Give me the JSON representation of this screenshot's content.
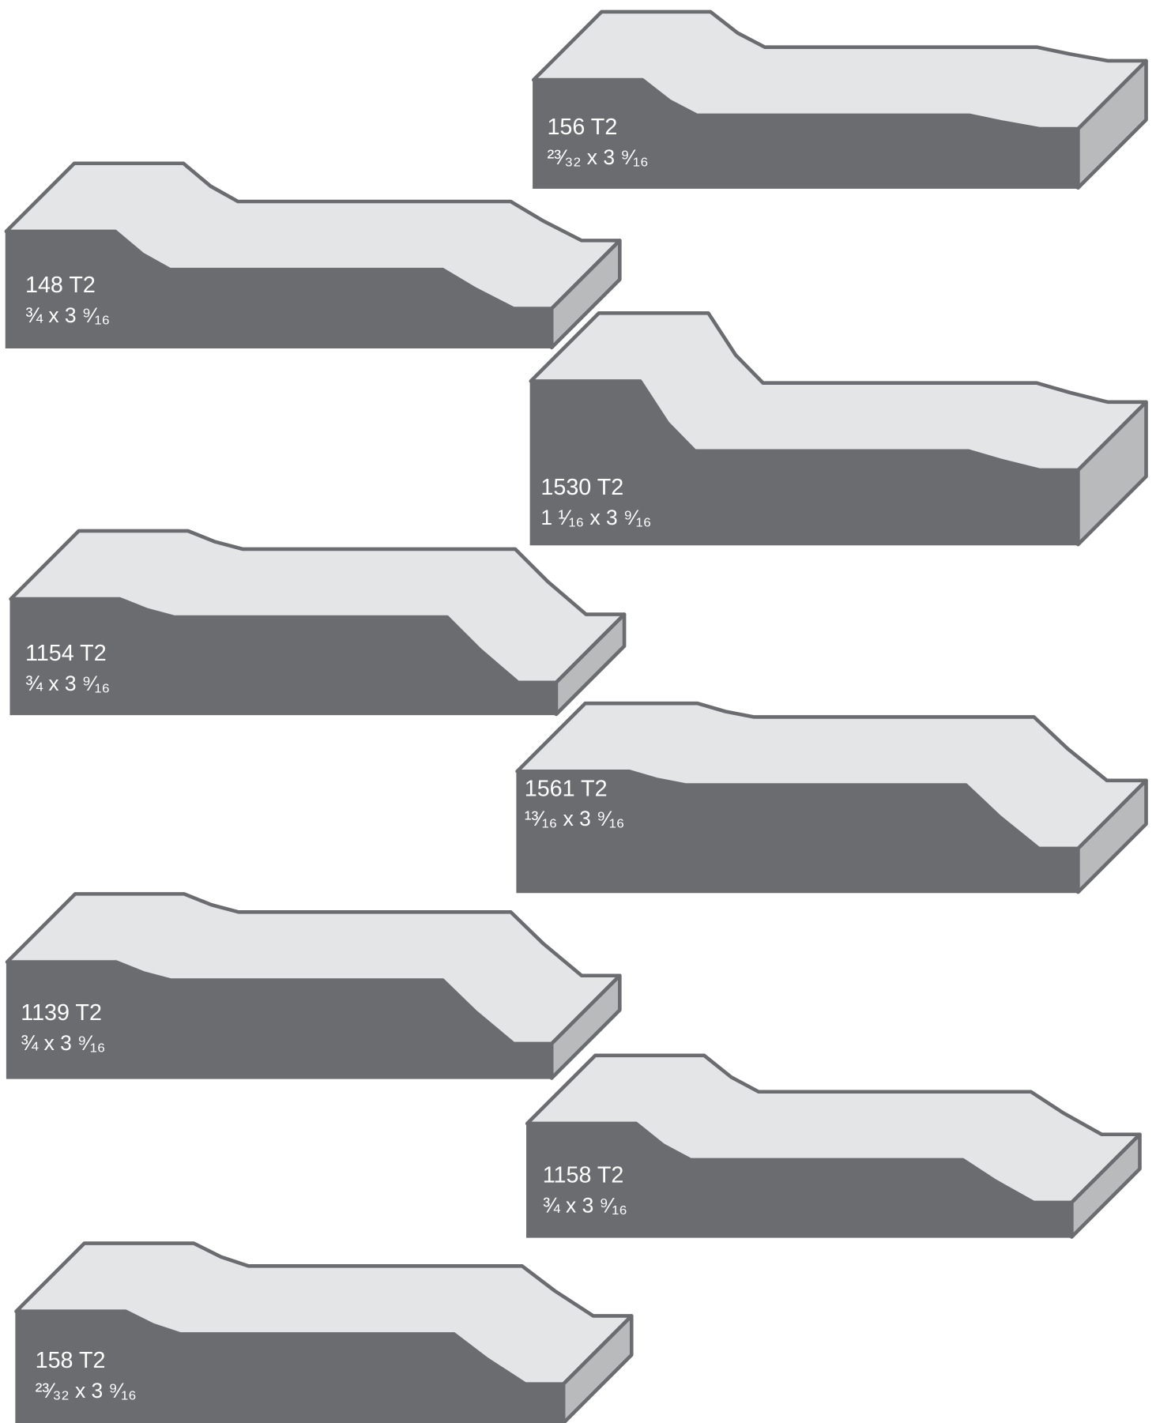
{
  "profiles": [
    {
      "name": "156 T2",
      "size": "²³⁄₃₂ x 3 ⁹⁄₁₆"
    },
    {
      "name": "148 T2",
      "size": "¾ x 3 ⁹⁄₁₆"
    },
    {
      "name": "1530 T2",
      "size": "1 ¹⁄₁₆ x 3 ⁹⁄₁₆"
    },
    {
      "name": "1154 T2",
      "size": "¾ x 3 ⁹⁄₁₆"
    },
    {
      "name": "1561 T2",
      "size": "¹³⁄₁₆ x  3 ⁹⁄₁₆"
    },
    {
      "name": "1139 T2",
      "size": "¾ x 3 ⁹⁄₁₆"
    },
    {
      "name": "1158 T2",
      "size": "¾ x 3 ⁹⁄₁₆"
    },
    {
      "name": "158 T2",
      "size": "²³⁄₃₂ x 3 ⁹⁄₁₆"
    }
  ]
}
